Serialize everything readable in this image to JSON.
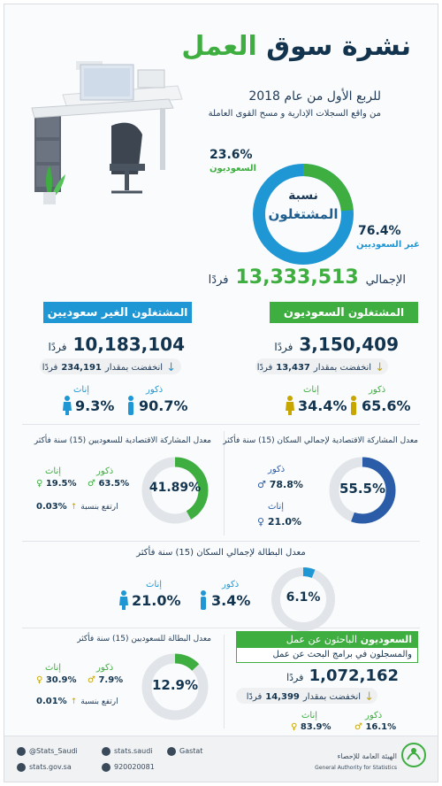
{
  "header": {
    "title_dark": "نشرة سوق",
    "title_green": "العمل",
    "period": "للربع الأول من عام 2018",
    "source": "من واقع السجلات الإدارية و مسح القوى العاملة"
  },
  "employed_ring": {
    "center_line1": "نسبة",
    "center_line2": "المشتغلون",
    "saudi_pct": "23.6%",
    "saudi_label": "السعوديون",
    "non_saudi_pct": "76.4%",
    "non_saudi_label": "غير السعوديين",
    "saudi_fraction": 0.236,
    "total_label": "الإجمالي",
    "total_value": "13,333,513",
    "total_unit": "فردًا"
  },
  "saudi_employed": {
    "header_prefix": "المشتغلون",
    "header_emph": "السعوديون",
    "value": "3,150,409",
    "unit": "فردًا",
    "change_label": "انخفضت بمقدار",
    "change_value": "13,437",
    "change_unit": "فردًا",
    "male_label": "ذكور",
    "male_pct": "65.6%",
    "female_label": "إناث",
    "female_pct": "34.4%"
  },
  "nonsaudi_employed": {
    "header_prefix": "المشتغلون",
    "header_emph": "الغير سعوديين",
    "value": "10,183,104",
    "unit": "فردًا",
    "change_label": "انخفضت بمقدار",
    "change_value": "234,191",
    "change_unit": "فردًا",
    "male_label": "ذكور",
    "male_pct": "90.7%",
    "female_label": "إناث",
    "female_pct": "9.3%"
  },
  "participation_total": {
    "title": "معدل المشاركة الاقتصادية لإجمالي السكان (15) سنة فأكثر",
    "value": "55.5%",
    "fraction": 0.555,
    "male_label": "ذكور",
    "male_pct": "78.8%",
    "female_label": "إناث",
    "female_pct": "21.0%"
  },
  "participation_saudi": {
    "title": "معدل المشاركة الاقتصادية للسعوديين (15) سنة فأكثر",
    "value": "41.89%",
    "fraction": 0.4189,
    "male_label": "ذكور",
    "male_pct": "63.5%",
    "female_label": "إناث",
    "female_pct": "19.5%",
    "change_value": "0.03%",
    "change_label": "ارتفع بنسبة"
  },
  "unemployment_total": {
    "title": "معدل البطالة لإجمالي السكان (15) سنة فأكثر",
    "value": "6.1%",
    "fraction": 0.061,
    "male_label": "ذكور",
    "male_pct": "3.4%",
    "female_label": "إناث",
    "female_pct": "21.0%"
  },
  "unemployment_saudi": {
    "title": "معدل البطالة للسعوديين (15) سنة فأكثر",
    "value": "12.9%",
    "fraction": 0.129,
    "male_label": "ذكور",
    "male_pct": "7.9%",
    "female_label": "إناث",
    "female_pct": "30.9%",
    "change_value": "0.01%",
    "change_label": "ارتفع بنسبة"
  },
  "job_seekers": {
    "header_emph": "السعوديون",
    "header_rest": "الباحثون عن عمل",
    "header_line2": "والمسجلون في برامج البحث عن عمل",
    "value": "1,072,162",
    "unit": "فردًا",
    "change_label": "انخفضت بمقدار",
    "change_value": "14,399",
    "change_unit": "فردًا",
    "male_label": "ذكور",
    "male_pct": "16.1%",
    "female_label": "إناث",
    "female_pct": "83.9%"
  },
  "footer": {
    "twitter": "@Stats_Saudi",
    "instagram": "stats.saudi",
    "snapchat": "Gastat",
    "website": "stats.gov.sa",
    "phone": "920020081",
    "org_ar": "الهيئة العامة للإحصاء",
    "org_en": "General Authority for Statistics"
  },
  "colors": {
    "green": "#3dae3f",
    "blue": "#1f97d4",
    "dark_blue": "#2a5ca8",
    "navy": "#13344f",
    "ring_bg": "#e1e4e8"
  }
}
